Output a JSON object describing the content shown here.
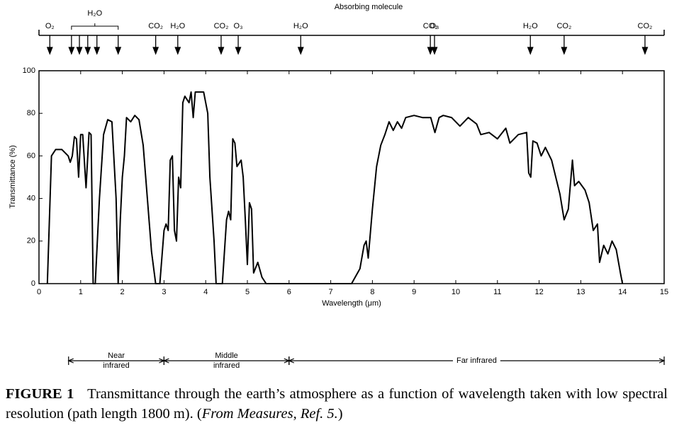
{
  "chart_data": {
    "type": "line",
    "top_title": "Absorbing molecule",
    "xlabel": "Wavelength (μm)",
    "ylabel": "Transmittance (%)",
    "xlim": [
      0,
      15
    ],
    "ylim": [
      0,
      100
    ],
    "xticks": [
      0,
      1,
      2,
      3,
      4,
      5,
      6,
      7,
      8,
      9,
      10,
      11,
      12,
      13,
      14,
      15
    ],
    "yticks": [
      0,
      20,
      40,
      60,
      80,
      100
    ],
    "color": "#000000",
    "x": [
      0.2,
      0.3,
      0.4,
      0.55,
      0.7,
      0.75,
      0.8,
      0.85,
      0.9,
      0.95,
      1.0,
      1.05,
      1.13,
      1.2,
      1.25,
      1.3,
      1.35,
      1.45,
      1.55,
      1.65,
      1.75,
      1.85,
      1.9,
      1.95,
      2.0,
      2.05,
      2.1,
      2.2,
      2.3,
      2.4,
      2.5,
      2.6,
      2.7,
      2.8,
      2.9,
      3.0,
      3.05,
      3.1,
      3.15,
      3.2,
      3.25,
      3.3,
      3.35,
      3.4,
      3.45,
      3.5,
      3.6,
      3.65,
      3.7,
      3.75,
      3.85,
      3.95,
      4.05,
      4.1,
      4.2,
      4.25,
      4.4,
      4.5,
      4.55,
      4.6,
      4.65,
      4.7,
      4.75,
      4.85,
      4.9,
      4.95,
      5.0,
      5.05,
      5.1,
      5.15,
      5.25,
      5.35,
      5.45,
      7.5,
      7.7,
      7.8,
      7.85,
      7.9,
      8.0,
      8.1,
      8.2,
      8.3,
      8.4,
      8.5,
      8.6,
      8.7,
      8.8,
      9.0,
      9.2,
      9.4,
      9.5,
      9.6,
      9.7,
      9.9,
      10.1,
      10.3,
      10.5,
      10.6,
      10.8,
      11.0,
      11.2,
      11.3,
      11.5,
      11.7,
      11.75,
      11.8,
      11.85,
      11.95,
      12.05,
      12.15,
      12.3,
      12.5,
      12.6,
      12.7,
      12.8,
      12.85,
      12.95,
      13.1,
      13.2,
      13.3,
      13.4,
      13.45,
      13.55,
      13.65,
      13.75,
      13.85,
      13.95,
      14.0
    ],
    "values": [
      0,
      60,
      63,
      63,
      60,
      57,
      60,
      69,
      68,
      50,
      70,
      70,
      45,
      71,
      70,
      0,
      0,
      40,
      70,
      77,
      76,
      40,
      0,
      30,
      50,
      60,
      78,
      76,
      79,
      77,
      65,
      40,
      15,
      0,
      0,
      25,
      28,
      25,
      58,
      60,
      25,
      20,
      50,
      45,
      85,
      88,
      85,
      90,
      78,
      90,
      90,
      90,
      80,
      50,
      20,
      0,
      0,
      30,
      34,
      30,
      68,
      66,
      55,
      58,
      50,
      30,
      9,
      38,
      35,
      5,
      10,
      3,
      0,
      0,
      7,
      18,
      20,
      12,
      35,
      55,
      65,
      70,
      76,
      72,
      76,
      73,
      78,
      79,
      78,
      78,
      71,
      78,
      79,
      78,
      74,
      78,
      75,
      70,
      71,
      68,
      73,
      66,
      70,
      71,
      52,
      50,
      67,
      66,
      60,
      64,
      58,
      42,
      30,
      35,
      58,
      46,
      48,
      44,
      38,
      25,
      28,
      10,
      18,
      14,
      20,
      16,
      5,
      0
    ],
    "absorbers": [
      {
        "label": "O₂",
        "x": [
          0.26
        ]
      },
      {
        "label": "H₂O",
        "x": [
          0.78,
          0.97,
          1.17,
          1.39,
          1.9
        ]
      },
      {
        "label": "CO₂",
        "x": [
          2.8
        ]
      },
      {
        "label": "H₂O",
        "x": [
          3.33
        ]
      },
      {
        "label": "CO₂",
        "x": [
          4.37
        ]
      },
      {
        "label": "O₃",
        "x": [
          4.78
        ]
      },
      {
        "label": "H₂O",
        "x": [
          6.28
        ]
      },
      {
        "label": "CO₂",
        "x": [
          9.39
        ]
      },
      {
        "label": "O₃",
        "x": [
          9.49
        ]
      },
      {
        "label": "H₂O",
        "x": [
          11.79
        ]
      },
      {
        "label": "CO₂",
        "x": [
          12.6
        ]
      },
      {
        "label": "CO₂",
        "x": [
          14.54
        ]
      }
    ],
    "regions": [
      {
        "lines": [
          "Near",
          "infrared"
        ],
        "start": 0.71,
        "end": 3
      },
      {
        "lines": [
          "Middle",
          "infrared"
        ],
        "start": 3,
        "end": 6
      },
      {
        "lines": [
          "Far infrared"
        ],
        "start": 6,
        "end": 15
      }
    ]
  },
  "caption": {
    "label": "FIGURE 1",
    "text": "Transmittance through the earth’s atmosphere as a function of wavelength taken with low spectral resolution (path length 1800 m). (",
    "source": "From Measures, Ref. 5.",
    "end": ")"
  }
}
